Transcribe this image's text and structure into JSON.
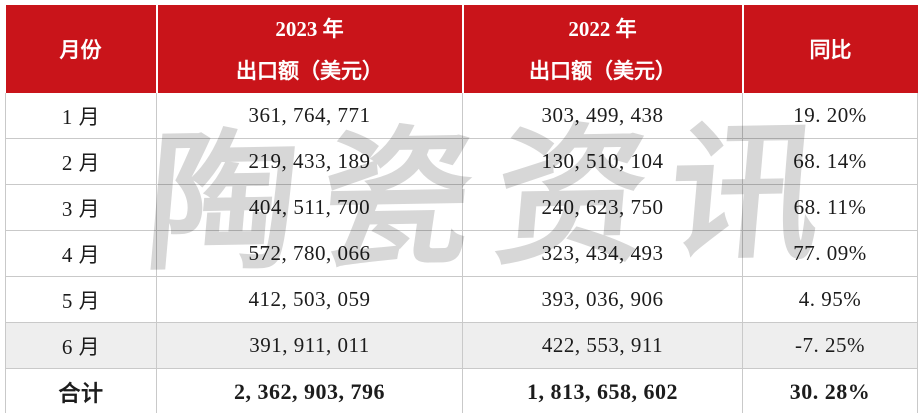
{
  "table": {
    "header": {
      "col_month": "月份",
      "col_2023_line1": "2023 年",
      "col_2023_line2": "出口额（美元）",
      "col_2022_line1": "2022 年",
      "col_2022_line2": "出口额（美元）",
      "col_yoy": "同比"
    },
    "rows": [
      [
        "1 月",
        "361, 764, 771",
        "303, 499, 438",
        "19. 20%"
      ],
      [
        "2 月",
        "219, 433, 189",
        "130, 510, 104",
        "68. 14%"
      ],
      [
        "3 月",
        "404, 511, 700",
        "240, 623, 750",
        "68. 11%"
      ],
      [
        "4 月",
        "572, 780, 066",
        "323, 434, 493",
        "77. 09%"
      ],
      [
        "5 月",
        "412, 503, 059",
        "393, 036, 906",
        "4. 95%"
      ],
      [
        "6 月",
        "391, 911, 011",
        "422, 553, 911",
        "-7. 25%"
      ]
    ],
    "total": [
      "合计",
      "2, 362, 903, 796",
      "1, 813, 658, 602",
      "30. 28%"
    ]
  },
  "watermark": {
    "text": "陶瓷资讯"
  },
  "colors": {
    "header_red": "#c9141a",
    "header_text": "#ffffff",
    "body_text": "#1c1c1c",
    "border_gray": "#c9c9c9",
    "shaded_row": "#eeeeee",
    "watermark_gray": "#d7d7d7"
  },
  "chart_data": {
    "type": "table",
    "columns": [
      "月份",
      "2023年 出口额（美元）",
      "2022年 出口额（美元）",
      "同比"
    ],
    "rows": [
      {
        "month": "1月",
        "export_2023_usd": 361764771,
        "export_2022_usd": 303499438,
        "yoy": "19.20%"
      },
      {
        "month": "2月",
        "export_2023_usd": 219433189,
        "export_2022_usd": 130510104,
        "yoy": "68.14%"
      },
      {
        "month": "3月",
        "export_2023_usd": 404511700,
        "export_2022_usd": 240623750,
        "yoy": "68.11%"
      },
      {
        "month": "4月",
        "export_2023_usd": 572780066,
        "export_2022_usd": 323434493,
        "yoy": "77.09%"
      },
      {
        "month": "5月",
        "export_2023_usd": 412503059,
        "export_2022_usd": 393036906,
        "yoy": "4.95%"
      },
      {
        "month": "6月",
        "export_2023_usd": 391911011,
        "export_2022_usd": 422553911,
        "yoy": "-7.25%"
      },
      {
        "month": "合计",
        "export_2023_usd": 2362903796,
        "export_2022_usd": 1813658602,
        "yoy": "30.28%"
      }
    ]
  }
}
